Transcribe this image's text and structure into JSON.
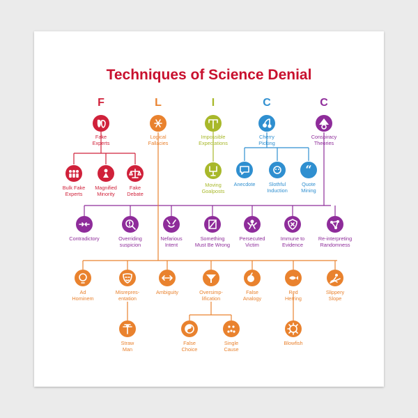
{
  "title": "Techniques of Science Denial",
  "colors": {
    "red": "#d0213a",
    "orange": "#e9822e",
    "olive": "#a8b82a",
    "blue": "#2f8fd0",
    "purple": "#8e2c9a",
    "ink": "#333333"
  },
  "categories": [
    {
      "letter": "F",
      "label": [
        "Fake",
        "Experts"
      ],
      "icon": "masks-icon",
      "color": "#d0213a"
    },
    {
      "letter": "L",
      "label": [
        "Logical",
        "Fallacies"
      ],
      "icon": "broken-logic-icon",
      "color": "#e9822e"
    },
    {
      "letter": "I",
      "label": [
        "Impossible",
        "Expectations"
      ],
      "icon": "goalpost-icon",
      "color": "#a8b82a"
    },
    {
      "letter": "C",
      "label": [
        "Cherry",
        "Picking"
      ],
      "icon": "cherries-icon",
      "color": "#2f8fd0"
    },
    {
      "letter": "C",
      "label": [
        "Conspiracy",
        "Theories"
      ],
      "icon": "tinfoil-hat-icon",
      "color": "#8e2c9a"
    }
  ],
  "fake_experts": [
    {
      "label": [
        "Bulk Fake",
        "Experts"
      ],
      "icon": "crowd-icon"
    },
    {
      "label": [
        "Magnified",
        "Minority"
      ],
      "icon": "magnified-figure-icon"
    },
    {
      "label": [
        "Fake",
        "Debate"
      ],
      "icon": "scales-icon"
    }
  ],
  "impossible": [
    {
      "label": [
        "Moving",
        "Goalposts"
      ],
      "icon": "moving-goalposts-icon"
    }
  ],
  "cherry": [
    {
      "label": [
        "Anecdote"
      ],
      "icon": "speech-bubble-icon"
    },
    {
      "label": [
        "Slothful",
        "Induction"
      ],
      "icon": "sloth-icon"
    },
    {
      "label": [
        "Quote",
        "Mining"
      ],
      "icon": "quote-marks-icon"
    }
  ],
  "conspiracy": [
    {
      "label": [
        "Contradictory"
      ],
      "icon": "arrows-inward-icon"
    },
    {
      "label": [
        "Overriding",
        "suspicion"
      ],
      "icon": "magnifier-icon"
    },
    {
      "label": [
        "Nefarious",
        "Intent"
      ],
      "icon": "devil-face-icon"
    },
    {
      "label": [
        "Something",
        "Must Be Wrong"
      ],
      "icon": "crossed-document-icon"
    },
    {
      "label": [
        "Persecuted",
        "Victim"
      ],
      "icon": "victim-icon"
    },
    {
      "label": [
        "Immune to",
        "Evidence"
      ],
      "icon": "shield-icon"
    },
    {
      "label": [
        "Re-interpreting",
        "Randomness"
      ],
      "icon": "connected-dots-icon"
    }
  ],
  "fallacies": [
    {
      "label": [
        "Ad",
        "Hominem"
      ],
      "icon": "head-icon"
    },
    {
      "label": [
        "Misrepres-",
        "entation"
      ],
      "icon": "mask-icon"
    },
    {
      "label": [
        "Ambiguity"
      ],
      "icon": "double-arrow-icon"
    },
    {
      "label": [
        "Oversimp-",
        "lification"
      ],
      "icon": "funnel-icon"
    },
    {
      "label": [
        "False",
        "Analogy"
      ],
      "icon": "apple-orange-icon"
    },
    {
      "label": [
        "Red",
        "Herring"
      ],
      "icon": "fish-icon"
    },
    {
      "label": [
        "Slippery",
        "Slope"
      ],
      "icon": "slipping-person-icon"
    }
  ],
  "fallacy_children": [
    {
      "label": [
        "Straw",
        "Man"
      ],
      "icon": "scarecrow-icon"
    },
    {
      "label": [
        "False",
        "Choice"
      ],
      "icon": "yin-yang-icon"
    },
    {
      "label": [
        "Single",
        "Cause"
      ],
      "icon": "dots-icon"
    },
    {
      "label": [
        "Blowfish"
      ],
      "icon": "blowfish-icon"
    }
  ]
}
